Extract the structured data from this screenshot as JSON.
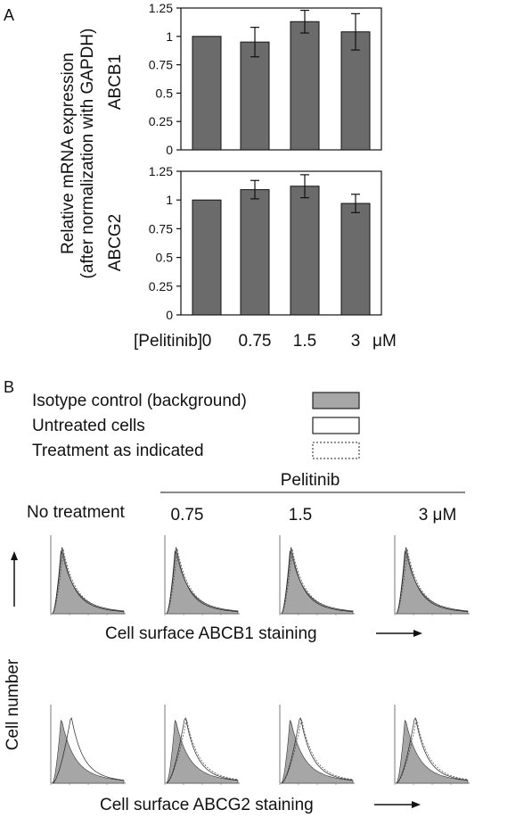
{
  "panels": {
    "a_label": "A",
    "b_label": "B"
  },
  "chart_data": [
    {
      "type": "bar",
      "gene": "ABCB1",
      "ylabel_line1": "Relative mRNA expression",
      "ylabel_line2": "(after normalization with GAPDH)",
      "categories": [
        "0",
        "0.75",
        "1.5",
        "3"
      ],
      "values": [
        1.0,
        0.95,
        1.13,
        1.04
      ],
      "errors": [
        0,
        0.13,
        0.1,
        0.16
      ],
      "ylim": [
        0,
        1.25
      ],
      "yticks": [
        "0",
        "0.25",
        "0.5",
        "0.75",
        "1",
        "1.25"
      ]
    },
    {
      "type": "bar",
      "gene": "ABCG2",
      "categories": [
        "0",
        "0.75",
        "1.5",
        "3"
      ],
      "values": [
        1.0,
        1.09,
        1.12,
        0.97
      ],
      "errors": [
        0,
        0.08,
        0.1,
        0.08
      ],
      "ylim": [
        0,
        1.25
      ],
      "yticks": [
        "0",
        "0.25",
        "0.5",
        "0.75",
        "1",
        "1.25"
      ]
    }
  ],
  "xaxis": {
    "label": "[Pelitinib]",
    "ticks": [
      "0",
      "0.75",
      "1.5",
      "3"
    ],
    "unit": "μM"
  },
  "legend": {
    "isotype": "Isotype control (background)",
    "untreated": "Untreated cells",
    "treated": "Treatment as indicated"
  },
  "flow": {
    "drug": "Pelitinib",
    "columns": [
      "No treatment",
      "0.75",
      "1.5",
      "3 μM"
    ],
    "ylabel": "Cell number",
    "row1_label": "Cell surface ABCB1 staining",
    "row2_label": "Cell surface ABCG2 staining"
  },
  "colors": {
    "bar": "#6b6b6b",
    "fill": "#a6a6a6"
  }
}
